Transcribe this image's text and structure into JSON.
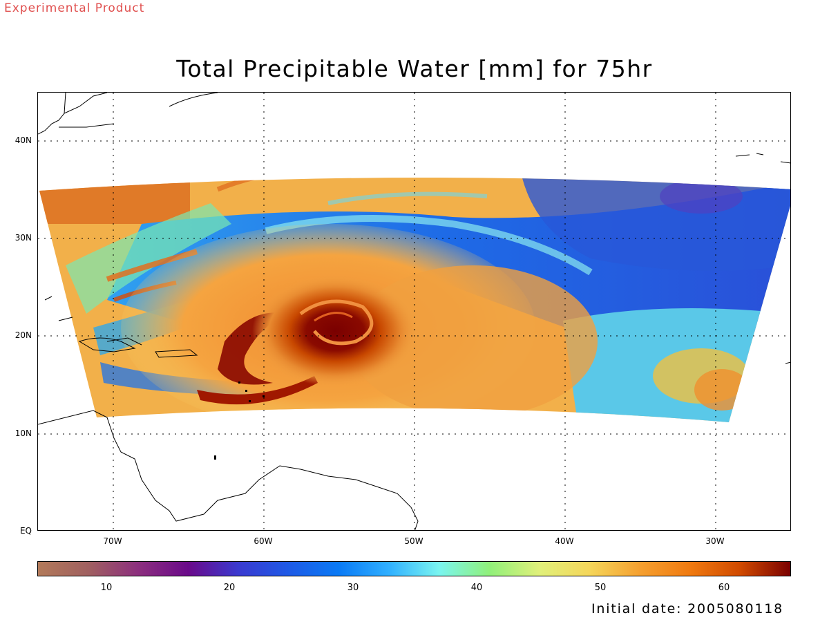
{
  "header": {
    "experimental": "Experimental Product"
  },
  "title": "Total Precipitable Water [mm] for 75hr",
  "footer": {
    "initial_date": "Initial date: 2005080118"
  },
  "map": {
    "lat_labels": [
      "40N",
      "30N",
      "20N",
      "10N",
      "EQ"
    ],
    "lat_values": [
      40,
      30,
      20,
      10,
      0
    ],
    "lon_labels": [
      "70W",
      "60W",
      "50W",
      "40W",
      "30W"
    ],
    "lon_values": [
      -70,
      -60,
      -50,
      -40,
      -30
    ],
    "extent": {
      "lon_min": -75,
      "lon_max": -25,
      "lat_min": 0,
      "lat_max": 45
    },
    "features": [
      "tropical-cyclone-moisture-swirl",
      "dry-air-band",
      "caribbean-coastlines",
      "south-america-coastline",
      "north-america-coastline"
    ]
  },
  "colorbar": {
    "tick_labels": [
      "10",
      "20",
      "30",
      "40",
      "50",
      "60"
    ],
    "tick_values": [
      10,
      20,
      30,
      40,
      50,
      60
    ],
    "range": [
      5,
      66
    ],
    "colors": [
      "#b27a5a",
      "#a06060",
      "#8c2f7e",
      "#6a0a8a",
      "#3a3ad0",
      "#1e5ae6",
      "#0a7af5",
      "#30b0ff",
      "#7af5f0",
      "#90f07a",
      "#e0f07a",
      "#f5d65a",
      "#f5a030",
      "#f07a10",
      "#d04a00",
      "#7a0000"
    ]
  }
}
